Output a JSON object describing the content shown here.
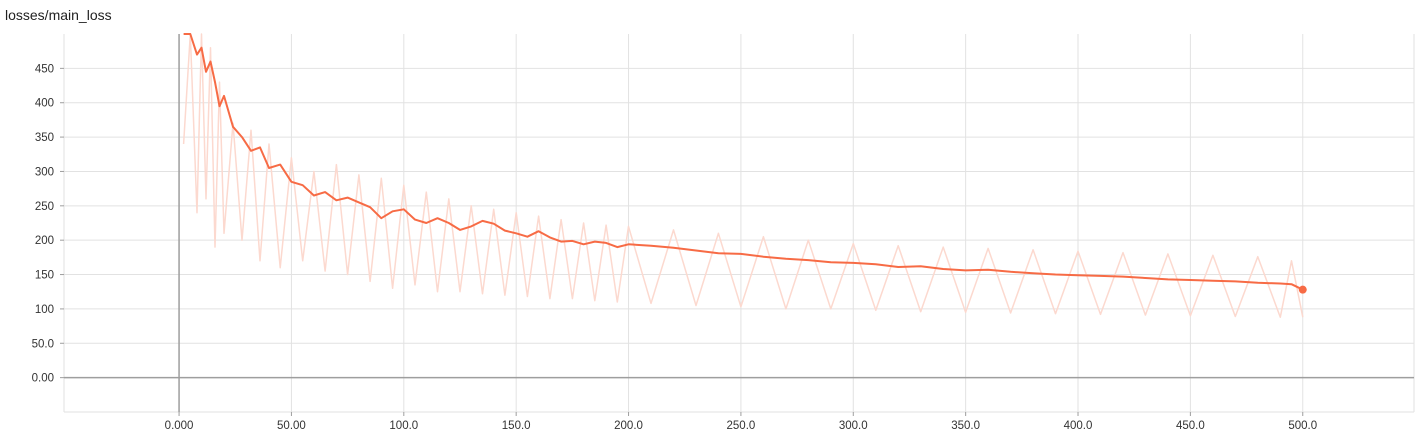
{
  "chart_data": {
    "type": "line",
    "title": "losses/main_loss",
    "xlabel": "",
    "ylabel": "",
    "xlim": [
      -51.2,
      549.5
    ],
    "ylim": [
      -50,
      500
    ],
    "grid": true,
    "x_ticks": [
      0,
      50,
      100,
      150,
      200,
      250,
      300,
      350,
      400,
      450,
      500
    ],
    "x_tick_labels": [
      "0.000",
      "50.00",
      "100.0",
      "150.0",
      "200.0",
      "250.0",
      "300.0",
      "350.0",
      "400.0",
      "450.0",
      "500.0"
    ],
    "y_ticks": [
      0,
      50,
      100,
      150,
      200,
      250,
      300,
      350,
      400,
      450
    ],
    "y_tick_labels": [
      "0.00",
      "50.0",
      "100",
      "150",
      "200",
      "250",
      "300",
      "350",
      "400",
      "450"
    ],
    "colors": {
      "smoothed": "#f76b45",
      "raw": "#fcd9cf",
      "grid": "#e2e2e2",
      "axis": "#9e9e9e"
    },
    "series": [
      {
        "role": "smoothed",
        "x": [
          2,
          5,
          8,
          10,
          12,
          14,
          16,
          18,
          20,
          24,
          28,
          32,
          36,
          40,
          45,
          50,
          55,
          60,
          65,
          70,
          75,
          80,
          85,
          90,
          95,
          100,
          105,
          110,
          115,
          120,
          125,
          130,
          135,
          140,
          145,
          150,
          155,
          160,
          165,
          170,
          175,
          180,
          185,
          190,
          195,
          200,
          210,
          220,
          230,
          240,
          250,
          260,
          270,
          280,
          290,
          300,
          310,
          320,
          330,
          340,
          350,
          360,
          370,
          380,
          390,
          400,
          410,
          420,
          430,
          440,
          450,
          460,
          470,
          480,
          490,
          495,
          500
        ],
        "y": [
          500,
          500,
          470,
          480,
          445,
          460,
          430,
          395,
          410,
          365,
          350,
          330,
          335,
          305,
          310,
          285,
          280,
          265,
          270,
          258,
          262,
          255,
          248,
          232,
          242,
          245,
          230,
          225,
          232,
          225,
          215,
          220,
          228,
          224,
          214,
          210,
          205,
          213,
          204,
          198,
          199,
          194,
          198,
          196,
          190,
          194,
          192,
          189,
          185,
          181,
          180,
          176,
          173,
          171,
          168,
          167,
          165,
          161,
          162,
          158,
          156,
          157,
          154,
          152,
          150,
          149,
          148,
          147,
          145,
          143,
          142,
          141,
          140,
          138,
          137,
          136,
          128
        ]
      },
      {
        "role": "raw",
        "x": [
          2,
          5,
          8,
          10,
          12,
          14,
          16,
          18,
          20,
          24,
          28,
          32,
          36,
          40,
          45,
          50,
          55,
          60,
          65,
          70,
          75,
          80,
          85,
          90,
          95,
          100,
          105,
          110,
          115,
          120,
          125,
          130,
          135,
          140,
          145,
          150,
          155,
          160,
          165,
          170,
          175,
          180,
          185,
          190,
          195,
          200,
          210,
          220,
          230,
          240,
          250,
          260,
          270,
          280,
          290,
          300,
          310,
          320,
          330,
          340,
          350,
          360,
          370,
          380,
          390,
          400,
          410,
          420,
          430,
          440,
          450,
          460,
          470,
          480,
          490,
          495,
          500
        ],
        "y": [
          340,
          500,
          240,
          500,
          260,
          480,
          190,
          430,
          210,
          370,
          200,
          360,
          170,
          340,
          160,
          320,
          170,
          300,
          155,
          310,
          150,
          295,
          140,
          290,
          130,
          280,
          135,
          270,
          125,
          260,
          125,
          250,
          122,
          245,
          120,
          240,
          118,
          235,
          115,
          230,
          115,
          225,
          112,
          222,
          110,
          220,
          108,
          215,
          105,
          210,
          103,
          205,
          100,
          200,
          100,
          195,
          98,
          192,
          96,
          190,
          95,
          188,
          94,
          186,
          93,
          184,
          92,
          182,
          91,
          180,
          90,
          178,
          89,
          176,
          88,
          170,
          88
        ]
      }
    ]
  }
}
